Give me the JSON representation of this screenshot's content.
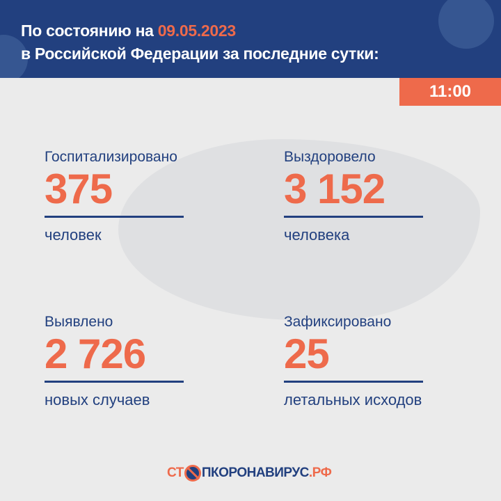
{
  "header": {
    "line1_prefix": "По состоянию на",
    "date": "09.05.2023",
    "line2": "в Российской Федерации за последние сутки:"
  },
  "time": "11:00",
  "stats": [
    {
      "label": "Госпитализировано",
      "value": "375",
      "unit": "человек"
    },
    {
      "label": "Выздоровело",
      "value": "3 152",
      "unit": "человека"
    },
    {
      "label": "Выявлено",
      "value": "2 726",
      "unit": "новых случаев"
    },
    {
      "label": "Зафиксировано",
      "value": "25",
      "unit": "летальных исходов"
    }
  ],
  "logo": {
    "part1": "СТ",
    "part2": "ПКОРОНАВИРУС",
    "part3": ".РФ"
  },
  "colors": {
    "blue": "#22407f",
    "orange": "#ee6a4b",
    "background": "#ebebeb"
  }
}
